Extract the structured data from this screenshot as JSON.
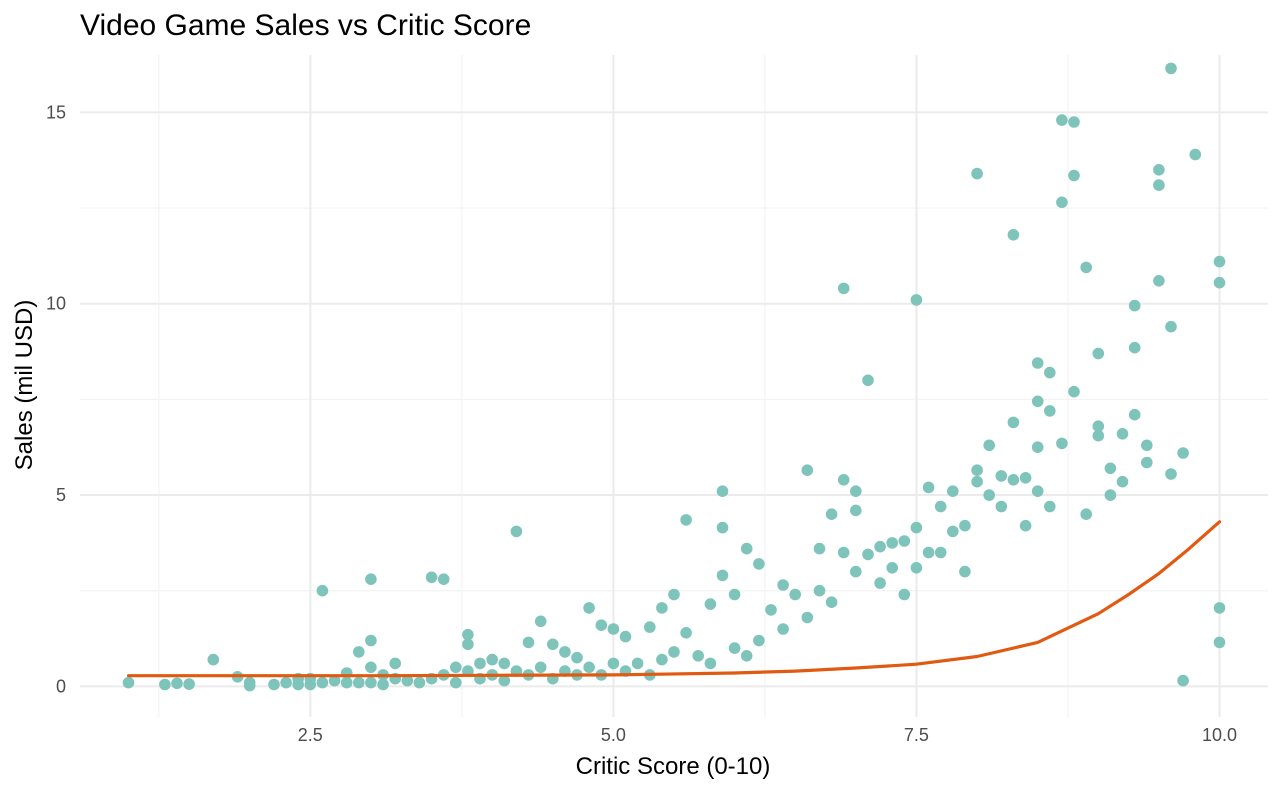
{
  "chart_data": {
    "type": "scatter",
    "title": "Video Game Sales vs Critic Score",
    "xlabel": "Critic Score (0-10)",
    "ylabel": "Sales (mil USD)",
    "xlim": [
      0.6,
      10.4
    ],
    "ylim": [
      -0.8,
      16.5
    ],
    "x_ticks": [
      2.5,
      5.0,
      7.5,
      10.0
    ],
    "x_tick_labels": [
      "2.5",
      "5.0",
      "7.5",
      "10.0"
    ],
    "x_minor_ticks": [
      1.25,
      3.75,
      6.25,
      8.75
    ],
    "y_ticks": [
      0,
      5,
      10,
      15
    ],
    "y_tick_labels": [
      "0",
      "5",
      "10",
      "15"
    ],
    "y_minor_ticks": [
      2.5,
      7.5,
      12.5
    ],
    "grid": true,
    "point_color": "#7fc4bb",
    "fit_color": "#e05a12",
    "series": [
      {
        "type": "scatter",
        "x": [
          1.0,
          1.3,
          1.4,
          1.5,
          1.7,
          1.9,
          2.0,
          2.0,
          2.2,
          2.3,
          2.4,
          2.4,
          2.5,
          2.5,
          2.6,
          2.6,
          2.7,
          2.8,
          2.8,
          2.9,
          2.9,
          3.0,
          3.0,
          3.0,
          3.0,
          3.1,
          3.1,
          3.2,
          3.2,
          3.3,
          3.4,
          3.5,
          3.5,
          3.6,
          3.6,
          3.7,
          3.7,
          3.8,
          3.8,
          3.8,
          3.9,
          3.9,
          4.0,
          4.0,
          4.1,
          4.1,
          4.2,
          4.2,
          4.3,
          4.3,
          4.4,
          4.4,
          4.5,
          4.5,
          4.6,
          4.6,
          4.7,
          4.7,
          4.8,
          4.8,
          4.9,
          4.9,
          5.0,
          5.0,
          5.1,
          5.1,
          5.2,
          5.3,
          5.3,
          5.4,
          5.4,
          5.5,
          5.5,
          5.6,
          5.6,
          5.7,
          5.8,
          5.8,
          5.9,
          5.9,
          5.9,
          6.0,
          6.0,
          6.1,
          6.1,
          6.2,
          6.2,
          6.3,
          6.4,
          6.4,
          6.5,
          6.6,
          6.6,
          6.7,
          6.7,
          6.8,
          6.8,
          6.9,
          6.9,
          6.9,
          7.0,
          7.0,
          7.0,
          7.1,
          7.1,
          7.2,
          7.2,
          7.3,
          7.3,
          7.4,
          7.4,
          7.5,
          7.5,
          7.5,
          7.6,
          7.6,
          7.7,
          7.7,
          7.8,
          7.8,
          7.9,
          7.9,
          8.0,
          8.0,
          8.0,
          8.1,
          8.1,
          8.2,
          8.2,
          8.3,
          8.3,
          8.3,
          8.4,
          8.4,
          8.5,
          8.5,
          8.5,
          8.5,
          8.6,
          8.6,
          8.6,
          8.7,
          8.7,
          8.7,
          8.8,
          8.8,
          8.8,
          8.9,
          8.9,
          9.0,
          9.0,
          9.0,
          9.1,
          9.1,
          9.2,
          9.2,
          9.3,
          9.3,
          9.3,
          9.4,
          9.4,
          9.5,
          9.5,
          9.5,
          9.6,
          9.6,
          9.6,
          9.7,
          9.7,
          9.8,
          10.0,
          10.0,
          10.0,
          10.0
        ],
        "y": [
          0.1,
          0.05,
          0.08,
          0.06,
          0.7,
          0.25,
          0.1,
          0.02,
          0.05,
          0.1,
          0.2,
          0.05,
          0.2,
          0.05,
          2.5,
          0.1,
          0.15,
          0.35,
          0.1,
          0.9,
          0.1,
          2.8,
          1.2,
          0.5,
          0.1,
          0.3,
          0.05,
          0.6,
          0.2,
          0.15,
          0.1,
          2.85,
          0.2,
          2.8,
          0.3,
          0.5,
          0.1,
          1.35,
          1.1,
          0.4,
          0.6,
          0.2,
          0.7,
          0.3,
          0.6,
          0.15,
          4.05,
          0.4,
          1.15,
          0.3,
          1.7,
          0.5,
          1.1,
          0.2,
          0.9,
          0.4,
          0.75,
          0.3,
          2.05,
          0.5,
          1.6,
          0.3,
          1.5,
          0.6,
          1.3,
          0.4,
          0.6,
          1.55,
          0.3,
          2.05,
          0.7,
          2.4,
          0.9,
          4.35,
          1.4,
          0.8,
          2.15,
          0.6,
          5.1,
          4.15,
          2.9,
          2.4,
          1.0,
          3.6,
          0.8,
          3.2,
          1.2,
          2.0,
          2.65,
          1.5,
          2.4,
          5.65,
          1.8,
          3.6,
          2.5,
          4.5,
          2.2,
          10.4,
          5.4,
          3.5,
          5.1,
          4.6,
          3.0,
          8.0,
          3.45,
          3.65,
          2.7,
          3.75,
          3.1,
          2.4,
          3.8,
          10.1,
          4.15,
          3.1,
          5.2,
          3.5,
          4.7,
          3.5,
          5.1,
          4.05,
          4.2,
          3.0,
          13.4,
          5.65,
          5.35,
          6.3,
          5.0,
          5.5,
          4.7,
          11.8,
          6.9,
          5.4,
          5.45,
          4.2,
          8.45,
          7.45,
          6.25,
          5.1,
          8.2,
          7.2,
          4.7,
          14.8,
          12.65,
          6.35,
          14.75,
          13.35,
          7.7,
          10.95,
          4.5,
          8.7,
          6.8,
          6.55,
          5.7,
          5.0,
          6.6,
          5.35,
          9.95,
          8.85,
          7.1,
          6.3,
          5.85,
          13.5,
          13.1,
          10.6,
          16.15,
          9.4,
          5.55,
          6.1,
          0.15,
          13.9,
          11.1,
          10.55,
          2.05,
          1.15
        ]
      },
      {
        "type": "line",
        "x": [
          1.0,
          2.0,
          3.0,
          4.0,
          5.0,
          6.0,
          6.5,
          7.0,
          7.5,
          8.0,
          8.5,
          9.0,
          9.25,
          9.5,
          9.75,
          10.0
        ],
        "y": [
          0.28,
          0.28,
          0.28,
          0.29,
          0.3,
          0.35,
          0.4,
          0.48,
          0.58,
          0.78,
          1.15,
          1.9,
          2.4,
          2.95,
          3.6,
          4.3
        ]
      }
    ]
  }
}
